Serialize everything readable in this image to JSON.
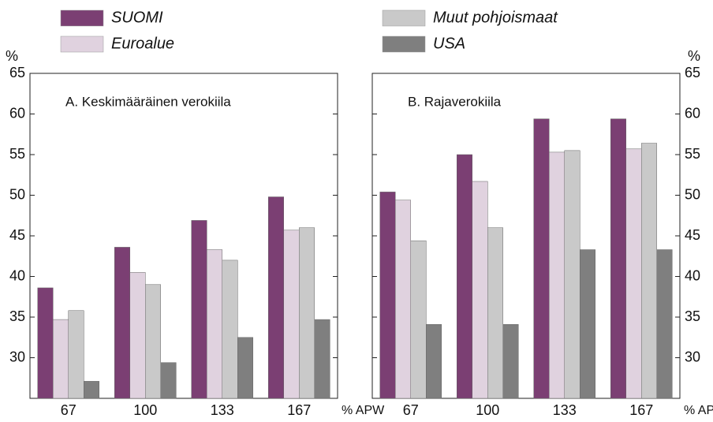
{
  "chart_data": {
    "type": "bar",
    "ylabel": "%",
    "xlabel": "% APW",
    "categories": [
      "67",
      "100",
      "133",
      "167"
    ],
    "ylim": [
      25,
      65
    ],
    "yticks": [
      30,
      35,
      40,
      45,
      50,
      55,
      60,
      65
    ],
    "series": [
      {
        "name": "SUOMI",
        "color": "#7b3f73"
      },
      {
        "name": "Euroalue",
        "color": "#e0d2df"
      },
      {
        "name": "Muut pohjoismaat",
        "color": "#c9c9c9"
      },
      {
        "name": "USA",
        "color": "#7f7f7f"
      }
    ],
    "panels": [
      {
        "title": "A. Keskimääräinen verokiila",
        "values": [
          [
            38.6,
            43.6,
            46.9,
            49.8
          ],
          [
            34.7,
            40.5,
            43.3,
            45.7
          ],
          [
            35.8,
            39.0,
            42.0,
            46.0
          ],
          [
            27.1,
            29.4,
            32.5,
            34.7
          ]
        ]
      },
      {
        "title": "B. Rajaverokiila",
        "values": [
          [
            50.4,
            55.0,
            59.4,
            59.4
          ],
          [
            49.4,
            51.7,
            55.3,
            55.7
          ],
          [
            44.4,
            46.0,
            55.5,
            56.4
          ],
          [
            34.1,
            34.1,
            43.3,
            43.3
          ]
        ]
      }
    ]
  }
}
